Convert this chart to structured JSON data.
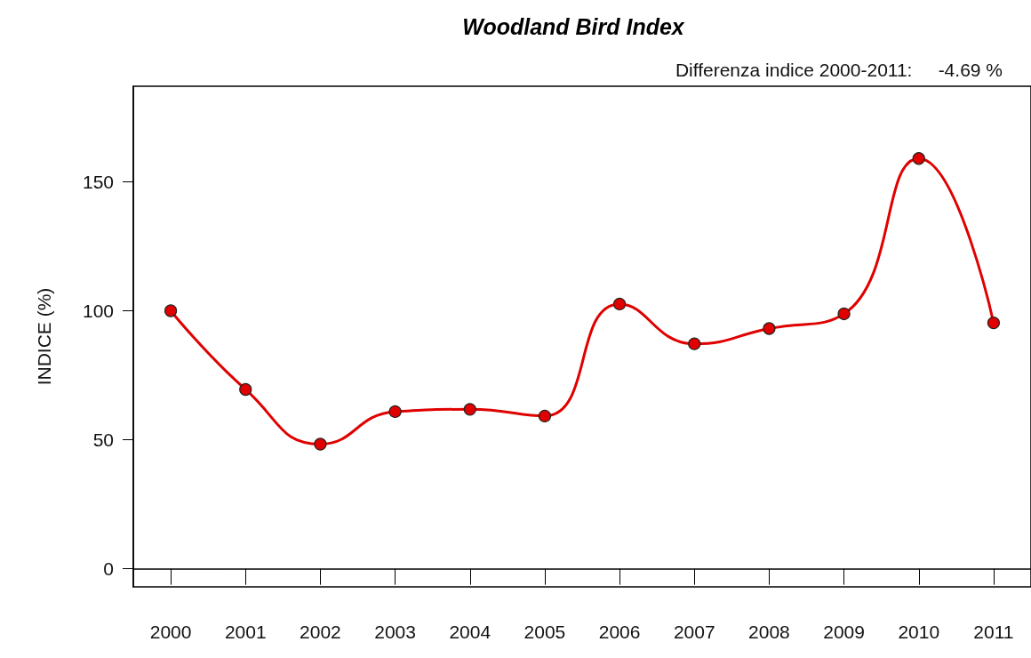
{
  "chart_data": {
    "type": "line",
    "title": "Woodland Bird Index",
    "ylabel": "INDICE (%)",
    "annotations": [
      "Differenza indice 2000-2011:     -4.69 %"
    ],
    "categories": [
      "2000",
      "2001",
      "2002",
      "2003",
      "2004",
      "2005",
      "2006",
      "2007",
      "2008",
      "2009",
      "2010",
      "2011"
    ],
    "series": [
      {
        "color": "#e00000",
        "values": [
          100,
          69.5,
          48.3,
          60.9,
          61.8,
          59.2,
          102.6,
          87.2,
          93.1,
          98.8,
          159,
          95.3
        ]
      }
    ],
    "ylim": [
      -7,
      187
    ],
    "yticks": [
      0,
      50,
      100,
      150
    ],
    "marker": "circle"
  }
}
